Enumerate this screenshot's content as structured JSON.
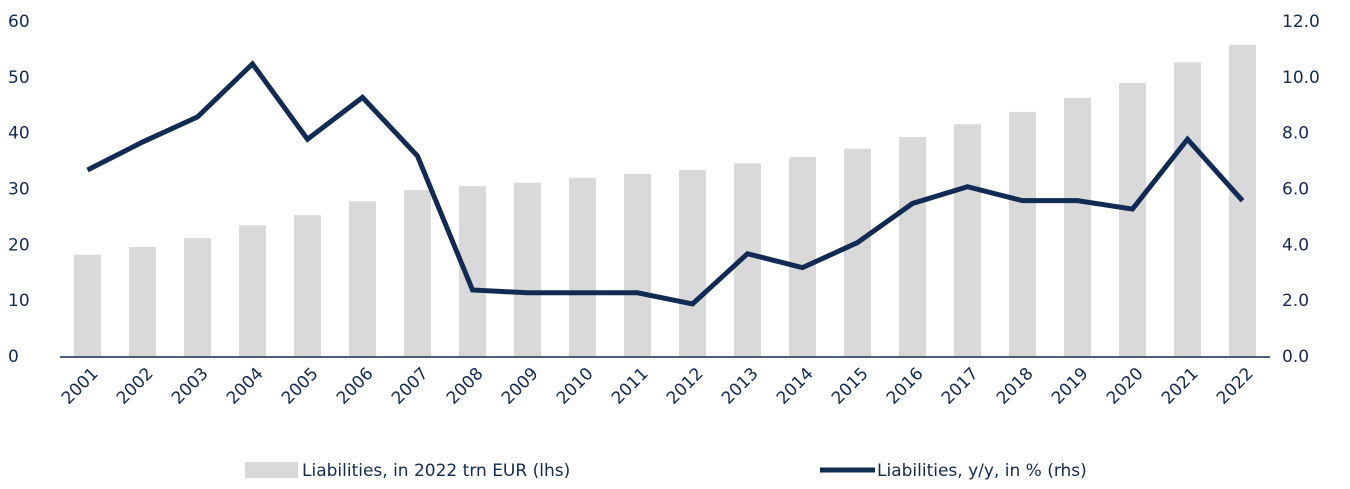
{
  "chart_data": {
    "type": "bar_line",
    "categories": [
      "2001",
      "2002",
      "2003",
      "2004",
      "2005",
      "2006",
      "2007",
      "2008",
      "2009",
      "2010",
      "2011",
      "2012",
      "2013",
      "2014",
      "2015",
      "2016",
      "2017",
      "2018",
      "2019",
      "2020",
      "2021",
      "2022"
    ],
    "series": [
      {
        "name": "Liabilities, in 2022 trn EUR (lhs)",
        "type": "bar",
        "color": "#d9d9d9",
        "axis": "y",
        "values": [
          18.3,
          19.7,
          21.3,
          23.6,
          25.4,
          27.9,
          29.9,
          30.6,
          31.2,
          32.1,
          32.8,
          33.5,
          34.7,
          35.8,
          37.3,
          39.4,
          41.7,
          43.9,
          46.4,
          49.1,
          52.8,
          55.9
        ]
      },
      {
        "name": "Liabilities, y/y, in % (rhs)",
        "type": "line",
        "color": "#122b54",
        "axis": "y2",
        "values": [
          6.7,
          7.7,
          8.6,
          10.5,
          7.8,
          9.3,
          7.2,
          2.4,
          2.3,
          2.3,
          2.3,
          1.9,
          3.7,
          3.2,
          4.1,
          5.5,
          6.1,
          5.6,
          5.6,
          5.3,
          7.8,
          5.6
        ]
      }
    ],
    "ylim": [
      0,
      60
    ],
    "yticks": [
      0,
      10,
      20,
      30,
      40,
      50,
      60
    ],
    "y2lim": [
      0,
      12
    ],
    "y2ticks": [
      {
        "value": 0,
        "label": "0.0"
      },
      {
        "value": 2,
        "label": "2.0"
      },
      {
        "value": 4,
        "label": "4.0"
      },
      {
        "value": 6,
        "label": "6.0"
      },
      {
        "value": 8,
        "label": "8.0"
      },
      {
        "value": 10,
        "label": "10.0"
      },
      {
        "value": 12,
        "label": "12.0"
      }
    ],
    "grid": false
  }
}
